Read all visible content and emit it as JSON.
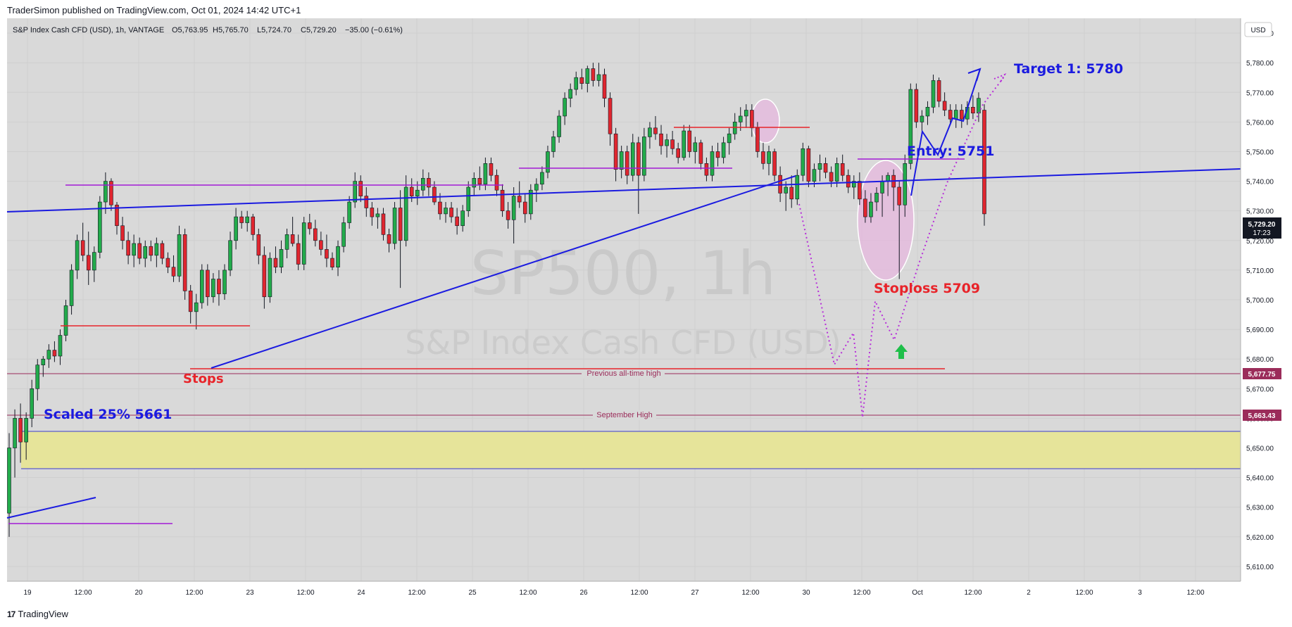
{
  "header": {
    "published": "TraderSimon published on TradingView.com, Oct 01, 2024 14:42 UTC+1"
  },
  "legend": {
    "symbol": "S&P Index Cash CFD (USD), 1h, VANTAGE",
    "open": "O5,763.95",
    "high": "H5,765.70",
    "low": "L5,724.70",
    "close": "C5,729.20",
    "change": "−35.00 (−0.61%)"
  },
  "watermark": {
    "line1": "SP500, 1h",
    "line2": "S&P Index Cash CFD (USD)"
  },
  "footer": {
    "brand": "TradingView",
    "logo": "17"
  },
  "price_scale": {
    "currency": "USD",
    "ticks": [
      "5,790.00",
      "5,780.00",
      "5,770.00",
      "5,760.00",
      "5,750.00",
      "5,740.00",
      "5,730.00",
      "5,720.00",
      "5,710.00",
      "5,700.00",
      "5,690.00",
      "5,680.00",
      "5,670.00",
      "5,660.00",
      "5,650.00",
      "5,640.00",
      "5,630.00",
      "5,620.00",
      "5,610.00"
    ],
    "last_price": "5,729.20",
    "countdown": "17:23",
    "tag_ath": "5,677.75",
    "tag_sept": "5,663.43"
  },
  "time_scale": [
    "19",
    "12:00",
    "20",
    "12:00",
    "23",
    "12:00",
    "24",
    "12:00",
    "25",
    "12:00",
    "26",
    "12:00",
    "27",
    "12:00",
    "30",
    "12:00",
    "Oct",
    "12:00",
    "2",
    "12:00",
    "3",
    "12:00"
  ],
  "annotations": {
    "target": "Target 1: 5780",
    "entry": "Entry: 5751",
    "stoploss": "Stoploss 5709",
    "stops": "Stops",
    "scaled": "Scaled 25% 5661",
    "prev_ath": "Previous all-time high",
    "sept_high": "September High"
  },
  "colors": {
    "up": "#22ab4b",
    "down": "#e0262f",
    "trend": "#1b1be0",
    "level": "#e8242a",
    "resistance": "#a31bd6",
    "zone": "#e6e49a",
    "ath_line": "#9b2c5a",
    "background": "#d9d9d9"
  },
  "chart_data": {
    "type": "candlestick",
    "timeframe": "1h",
    "ylim": [
      5605,
      5795
    ],
    "candles": [
      [
        5628,
        5655,
        5620,
        5650
      ],
      [
        5650,
        5663,
        5640,
        5660
      ],
      [
        5660,
        5665,
        5645,
        5652
      ],
      [
        5652,
        5662,
        5646,
        5660
      ],
      [
        5660,
        5673,
        5657,
        5670
      ],
      [
        5670,
        5680,
        5666,
        5678
      ],
      [
        5678,
        5681,
        5674,
        5680
      ],
      [
        5680,
        5685,
        5677,
        5683
      ],
      [
        5683,
        5686,
        5679,
        5681
      ],
      [
        5681,
        5690,
        5678,
        5688
      ],
      [
        5688,
        5700,
        5686,
        5698
      ],
      [
        5698,
        5712,
        5695,
        5710
      ],
      [
        5710,
        5722,
        5707,
        5720
      ],
      [
        5720,
        5726,
        5713,
        5715
      ],
      [
        5715,
        5723,
        5705,
        5710
      ],
      [
        5710,
        5718,
        5706,
        5716
      ],
      [
        5716,
        5735,
        5714,
        5733
      ],
      [
        5733,
        5743,
        5729,
        5740
      ],
      [
        5740,
        5741,
        5730,
        5732
      ],
      [
        5732,
        5733,
        5722,
        5725
      ],
      [
        5725,
        5728,
        5717,
        5720
      ],
      [
        5720,
        5723,
        5712,
        5715
      ],
      [
        5715,
        5722,
        5711,
        5719
      ],
      [
        5719,
        5721,
        5712,
        5714
      ],
      [
        5714,
        5720,
        5711,
        5718
      ],
      [
        5718,
        5720,
        5713,
        5715
      ],
      [
        5715,
        5721,
        5711,
        5719
      ],
      [
        5719,
        5720,
        5712,
        5714
      ],
      [
        5714,
        5716,
        5709,
        5711
      ],
      [
        5711,
        5715,
        5706,
        5708
      ],
      [
        5708,
        5725,
        5706,
        5722
      ],
      [
        5722,
        5724,
        5700,
        5703
      ],
      [
        5703,
        5705,
        5692,
        5696
      ],
      [
        5696,
        5702,
        5690,
        5699
      ],
      [
        5699,
        5712,
        5697,
        5710
      ],
      [
        5710,
        5712,
        5698,
        5701
      ],
      [
        5701,
        5709,
        5699,
        5707
      ],
      [
        5707,
        5710,
        5698,
        5702
      ],
      [
        5702,
        5712,
        5700,
        5710
      ],
      [
        5710,
        5723,
        5708,
        5720
      ],
      [
        5720,
        5731,
        5717,
        5728
      ],
      [
        5728,
        5730,
        5724,
        5726
      ],
      [
        5726,
        5730,
        5723,
        5728
      ],
      [
        5728,
        5729,
        5720,
        5722
      ],
      [
        5722,
        5724,
        5712,
        5715
      ],
      [
        5715,
        5718,
        5697,
        5701
      ],
      [
        5701,
        5716,
        5699,
        5714
      ],
      [
        5714,
        5718,
        5709,
        5711
      ],
      [
        5711,
        5720,
        5709,
        5717
      ],
      [
        5717,
        5724,
        5714,
        5722
      ],
      [
        5722,
        5728,
        5718,
        5719
      ],
      [
        5719,
        5722,
        5710,
        5712
      ],
      [
        5712,
        5728,
        5710,
        5726
      ],
      [
        5726,
        5729,
        5722,
        5724
      ],
      [
        5724,
        5727,
        5718,
        5720
      ],
      [
        5720,
        5723,
        5715,
        5717
      ],
      [
        5717,
        5722,
        5711,
        5714
      ],
      [
        5714,
        5716,
        5710,
        5711
      ],
      [
        5711,
        5720,
        5708,
        5718
      ],
      [
        5718,
        5728,
        5716,
        5726
      ],
      [
        5726,
        5735,
        5724,
        5733
      ],
      [
        5733,
        5743,
        5731,
        5740
      ],
      [
        5740,
        5742,
        5733,
        5735
      ],
      [
        5735,
        5738,
        5728,
        5731
      ],
      [
        5731,
        5733,
        5725,
        5728
      ],
      [
        5728,
        5731,
        5724,
        5729
      ],
      [
        5729,
        5731,
        5720,
        5722
      ],
      [
        5722,
        5724,
        5716,
        5719
      ],
      [
        5719,
        5733,
        5717,
        5731
      ],
      [
        5731,
        5737,
        5704,
        5720
      ],
      [
        5720,
        5742,
        5718,
        5738
      ],
      [
        5738,
        5741,
        5733,
        5735
      ],
      [
        5735,
        5740,
        5732,
        5737
      ],
      [
        5737,
        5744,
        5735,
        5741
      ],
      [
        5741,
        5743,
        5735,
        5738
      ],
      [
        5738,
        5740,
        5732,
        5733
      ],
      [
        5733,
        5736,
        5727,
        5729
      ],
      [
        5729,
        5733,
        5726,
        5731
      ],
      [
        5731,
        5733,
        5726,
        5728
      ],
      [
        5728,
        5731,
        5722,
        5725
      ],
      [
        5725,
        5732,
        5723,
        5730
      ],
      [
        5730,
        5740,
        5728,
        5738
      ],
      [
        5738,
        5743,
        5735,
        5741
      ],
      [
        5741,
        5745,
        5737,
        5739
      ],
      [
        5739,
        5748,
        5737,
        5746
      ],
      [
        5746,
        5748,
        5740,
        5742
      ],
      [
        5742,
        5744,
        5735,
        5737
      ],
      [
        5737,
        5739,
        5728,
        5730
      ],
      [
        5730,
        5733,
        5724,
        5727
      ],
      [
        5727,
        5738,
        5719,
        5735
      ],
      [
        5735,
        5740,
        5731,
        5733
      ],
      [
        5733,
        5736,
        5726,
        5729
      ],
      [
        5729,
        5739,
        5727,
        5737
      ],
      [
        5737,
        5741,
        5733,
        5739
      ],
      [
        5739,
        5745,
        5737,
        5743
      ],
      [
        5743,
        5752,
        5741,
        5750
      ],
      [
        5750,
        5757,
        5748,
        5755
      ],
      [
        5755,
        5764,
        5753,
        5762
      ],
      [
        5762,
        5770,
        5759,
        5768
      ],
      [
        5768,
        5773,
        5765,
        5771
      ],
      [
        5771,
        5777,
        5769,
        5775
      ],
      [
        5775,
        5778,
        5771,
        5773
      ],
      [
        5773,
        5779,
        5770,
        5778
      ],
      [
        5778,
        5780,
        5772,
        5774
      ],
      [
        5774,
        5780,
        5772,
        5776
      ],
      [
        5776,
        5778,
        5765,
        5768
      ],
      [
        5768,
        5770,
        5752,
        5756
      ],
      [
        5756,
        5758,
        5740,
        5744
      ],
      [
        5744,
        5752,
        5741,
        5750
      ],
      [
        5750,
        5752,
        5739,
        5742
      ],
      [
        5742,
        5756,
        5740,
        5753
      ],
      [
        5753,
        5755,
        5729,
        5742
      ],
      [
        5742,
        5758,
        5740,
        5755
      ],
      [
        5755,
        5760,
        5751,
        5758
      ],
      [
        5758,
        5762,
        5754,
        5756
      ],
      [
        5756,
        5759,
        5749,
        5752
      ],
      [
        5752,
        5756,
        5748,
        5754
      ],
      [
        5754,
        5757,
        5749,
        5751
      ],
      [
        5751,
        5753,
        5746,
        5748
      ],
      [
        5748,
        5759,
        5747,
        5757
      ],
      [
        5757,
        5759,
        5748,
        5750
      ],
      [
        5750,
        5755,
        5746,
        5753
      ],
      [
        5753,
        5754,
        5744,
        5746
      ],
      [
        5746,
        5748,
        5740,
        5742
      ],
      [
        5742,
        5752,
        5740,
        5750
      ],
      [
        5750,
        5753,
        5745,
        5748
      ],
      [
        5748,
        5755,
        5746,
        5753
      ],
      [
        5753,
        5758,
        5749,
        5756
      ],
      [
        5756,
        5763,
        5754,
        5760
      ],
      [
        5760,
        5765,
        5757,
        5762
      ],
      [
        5762,
        5766,
        5758,
        5764
      ],
      [
        5764,
        5766,
        5755,
        5758
      ],
      [
        5758,
        5760,
        5748,
        5750
      ],
      [
        5750,
        5753,
        5744,
        5746
      ],
      [
        5746,
        5752,
        5742,
        5750
      ],
      [
        5750,
        5751,
        5740,
        5742
      ],
      [
        5742,
        5745,
        5733,
        5736
      ],
      [
        5736,
        5740,
        5730,
        5738
      ],
      [
        5738,
        5742,
        5731,
        5734
      ],
      [
        5734,
        5744,
        5732,
        5742
      ],
      [
        5742,
        5753,
        5740,
        5751
      ],
      [
        5751,
        5752,
        5738,
        5740
      ],
      [
        5740,
        5746,
        5738,
        5744
      ],
      [
        5744,
        5749,
        5740,
        5746
      ],
      [
        5746,
        5748,
        5741,
        5743
      ],
      [
        5743,
        5745,
        5738,
        5740
      ],
      [
        5740,
        5748,
        5738,
        5746
      ],
      [
        5746,
        5749,
        5740,
        5742
      ],
      [
        5742,
        5744,
        5736,
        5738
      ],
      [
        5738,
        5742,
        5734,
        5740
      ],
      [
        5740,
        5743,
        5732,
        5734
      ],
      [
        5734,
        5737,
        5726,
        5728
      ],
      [
        5728,
        5736,
        5726,
        5733
      ],
      [
        5733,
        5738,
        5730,
        5736
      ],
      [
        5736,
        5742,
        5728,
        5740
      ],
      [
        5740,
        5743,
        5735,
        5742
      ],
      [
        5742,
        5744,
        5730,
        5738
      ],
      [
        5738,
        5740,
        5707,
        5732
      ],
      [
        5732,
        5749,
        5728,
        5746
      ],
      [
        5746,
        5773,
        5744,
        5771
      ],
      [
        5771,
        5773,
        5758,
        5760
      ],
      [
        5760,
        5764,
        5756,
        5762
      ],
      [
        5762,
        5767,
        5759,
        5765
      ],
      [
        5765,
        5776,
        5763,
        5774
      ],
      [
        5774,
        5775,
        5765,
        5767
      ],
      [
        5767,
        5770,
        5762,
        5764
      ],
      [
        5764,
        5766,
        5759,
        5761
      ],
      [
        5761,
        5766,
        5758,
        5764
      ],
      [
        5764,
        5766,
        5758,
        5761
      ],
      [
        5761,
        5767,
        5759,
        5765
      ],
      [
        5765,
        5769,
        5761,
        5763
      ],
      [
        5763,
        5770,
        5760,
        5768
      ],
      [
        5764,
        5766,
        5725,
        5729
      ]
    ]
  }
}
